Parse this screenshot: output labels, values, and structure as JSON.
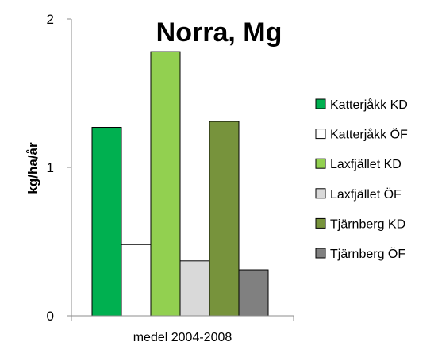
{
  "chart_data": {
    "type": "bar",
    "title": "Norra, Mg",
    "xlabel": "",
    "ylabel": "kg/ha/år",
    "categories": [
      "medel 2004-2008"
    ],
    "ylim": [
      0,
      2
    ],
    "yticks": [
      0,
      1,
      2
    ],
    "grid": false,
    "legend_position": "right",
    "series": [
      {
        "name": "Katterjåkk KD",
        "values": [
          1.27
        ],
        "color": "#00b050"
      },
      {
        "name": "Katterjåkk ÖF",
        "values": [
          0.48
        ],
        "color": "#ffffff"
      },
      {
        "name": "Laxfjället KD",
        "values": [
          1.78
        ],
        "color": "#92d050"
      },
      {
        "name": "Laxfjället ÖF",
        "values": [
          0.37
        ],
        "color": "#d9d9d9"
      },
      {
        "name": "Tjärnberg KD",
        "values": [
          1.31
        ],
        "color": "#77933c"
      },
      {
        "name": "Tjärnberg ÖF",
        "values": [
          0.31
        ],
        "color": "#808080"
      }
    ]
  }
}
